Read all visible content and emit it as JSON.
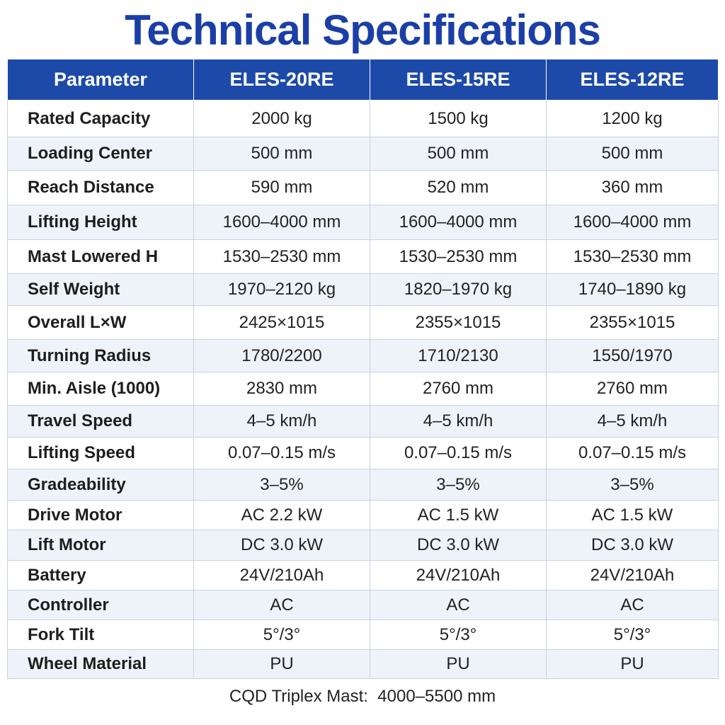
{
  "header": {
    "title": "Technical Specifications"
  },
  "table": {
    "columns": [
      "Parameter",
      "ELES-20RE",
      "ELES-15RE",
      "ELES-12RE"
    ],
    "rows": [
      [
        "Rated Capacity",
        "2000 kg",
        "1500 kg",
        "1200 kg"
      ],
      [
        "Loading Center",
        "500 mm",
        "500 mm",
        "500 mm"
      ],
      [
        "Reach Distance",
        "590 mm",
        "520 mm",
        "360 mm"
      ],
      [
        "Lifting Height",
        "1600–4000 mm",
        "1600–4000 mm",
        "1600–4000 mm"
      ],
      [
        "Mast Lowered H",
        "1530–2530 mm",
        "1530–2530 mm",
        "1530–2530 mm"
      ],
      [
        "Self Weight",
        "1970–2120 kg",
        "1820–1970 kg",
        "1740–1890 kg"
      ],
      [
        "Overall L×W",
        "2425×1015",
        "2355×1015",
        "2355×1015"
      ],
      [
        "Turning Radius",
        "1780/2200",
        "1710/2130",
        "1550/1970"
      ],
      [
        "Min. Aisle (1000)",
        "2830 mm",
        "2760 mm",
        "2760 mm"
      ],
      [
        "Travel Speed",
        "4–5 km/h",
        "4–5 km/h",
        "4–5 km/h"
      ],
      [
        "Lifting Speed",
        "0.07–0.15 m/s",
        "0.07–0.15 m/s",
        "0.07–0.15 m/s"
      ],
      [
        "Gradeability",
        "3–5%",
        "3–5%",
        "3–5%"
      ],
      [
        "Drive Motor",
        "AC 2.2 kW",
        "AC 1.5 kW",
        "AC 1.5 kW"
      ],
      [
        "Lift Motor",
        "DC 3.0 kW",
        "DC 3.0 kW",
        "DC 3.0 kW"
      ],
      [
        "Battery",
        "24V/210Ah",
        "24V/210Ah",
        "24V/210Ah"
      ],
      [
        "Controller",
        "AC",
        "AC",
        "AC"
      ],
      [
        "Fork Tilt",
        "5°/3°",
        "5°/3°",
        "5°/3°"
      ],
      [
        "Wheel Material",
        "PU",
        "PU",
        "PU"
      ]
    ]
  },
  "footer": {
    "note": "CQD Triplex Mast:  4000–5500 mm"
  }
}
